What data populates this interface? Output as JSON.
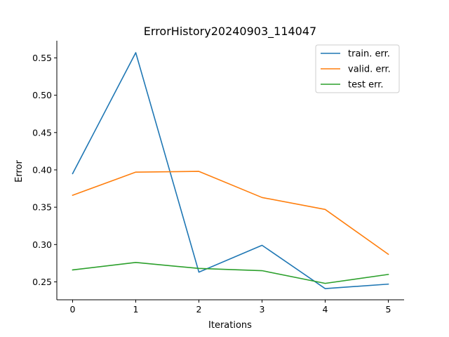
{
  "chart_data": {
    "type": "line",
    "title": "ErrorHistory20240903_114047",
    "xlabel": "Iterations",
    "ylabel": "Error",
    "x": [
      0,
      1,
      2,
      3,
      4,
      5
    ],
    "xlim": [
      -0.25,
      5.25
    ],
    "ylim": [
      0.226,
      0.573
    ],
    "xticks": [
      0,
      1,
      2,
      3,
      4,
      5
    ],
    "yticks": [
      0.25,
      0.3,
      0.35,
      0.4,
      0.45,
      0.5,
      0.55
    ],
    "ytick_labels": [
      "0.25",
      "0.30",
      "0.35",
      "0.40",
      "0.45",
      "0.50",
      "0.55"
    ],
    "grid": false,
    "legend_position": "top-right",
    "series": [
      {
        "name": "train. err.",
        "color": "#1f77b4",
        "values": [
          0.395,
          0.557,
          0.263,
          0.299,
          0.241,
          0.247
        ]
      },
      {
        "name": "valid. err.",
        "color": "#ff7f0e",
        "values": [
          0.366,
          0.397,
          0.398,
          0.363,
          0.347,
          0.287
        ]
      },
      {
        "name": "test err.",
        "color": "#2ca02c",
        "values": [
          0.266,
          0.276,
          0.268,
          0.265,
          0.248,
          0.26
        ]
      }
    ]
  }
}
